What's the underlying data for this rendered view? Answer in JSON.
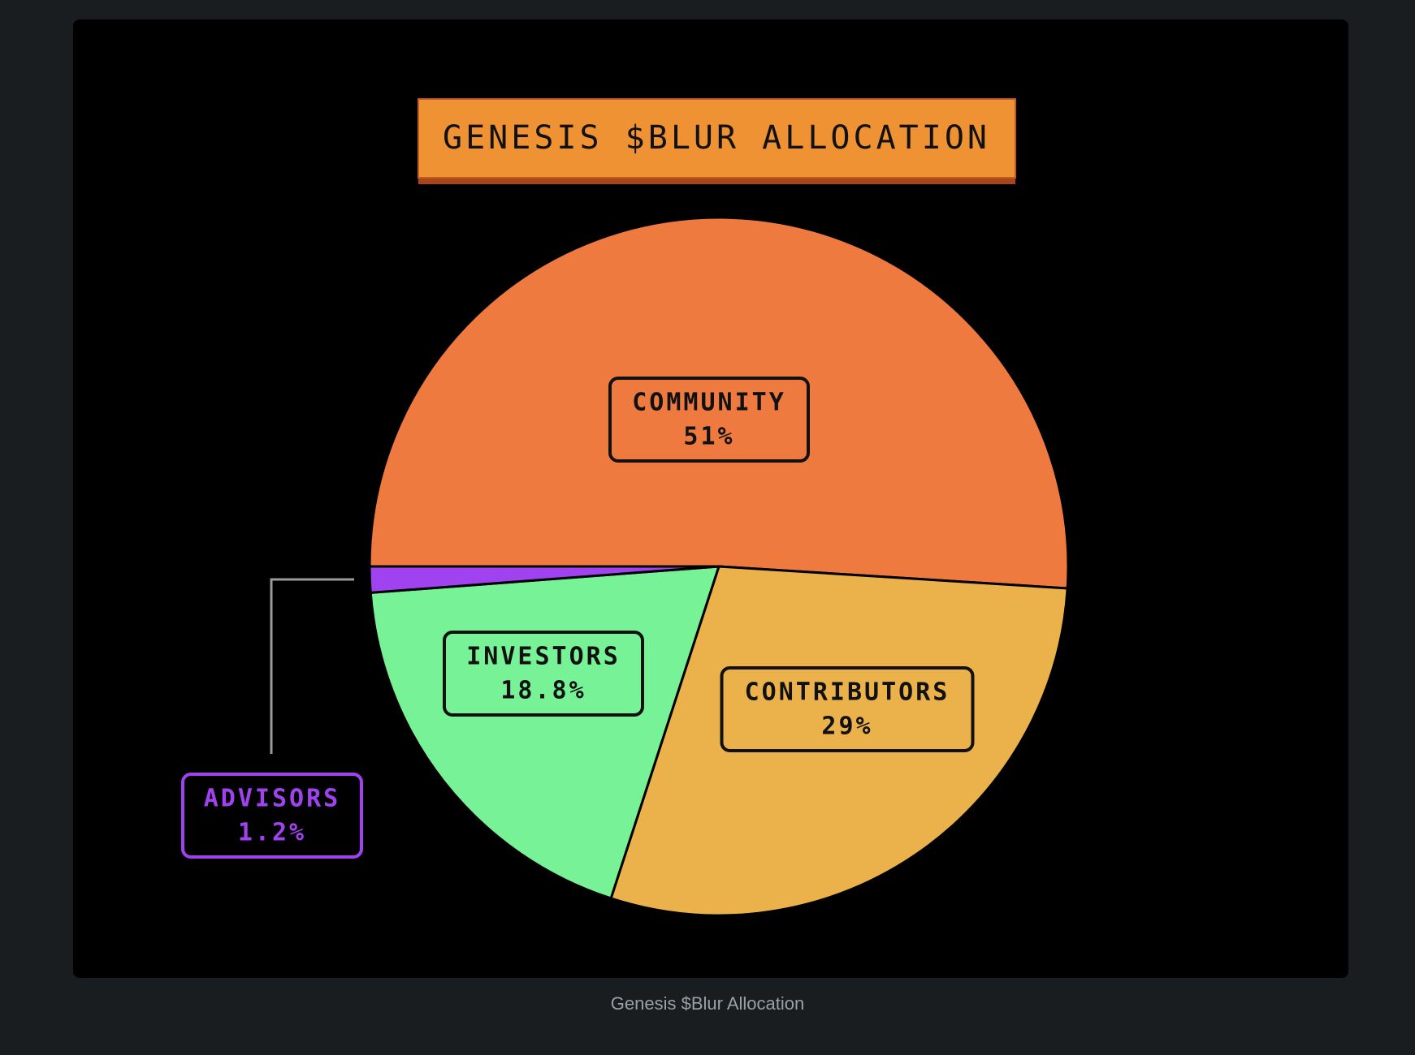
{
  "chart_data": {
    "type": "pie",
    "title": "GENESIS $BLUR ALLOCATION",
    "caption": "Genesis $Blur Allocation",
    "categories": [
      "COMMUNITY",
      "CONTRIBUTORS",
      "INVESTORS",
      "ADVISORS"
    ],
    "values": [
      51,
      29,
      18.8,
      1.2
    ],
    "value_labels": [
      "51%",
      "29%",
      "18.8%",
      "1.2%"
    ],
    "colors": [
      "#ee7a40",
      "#ebb24b",
      "#78f296",
      "#a142f0"
    ]
  }
}
